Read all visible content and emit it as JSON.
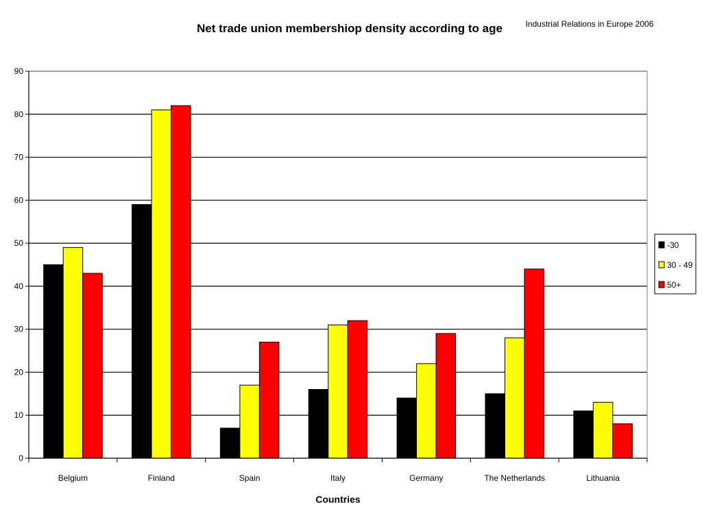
{
  "chart_data": {
    "type": "bar",
    "title": "Net trade union membershiop density according to age",
    "source_note": "Industrial Relations in Europe 2006",
    "xlabel": "Countries",
    "ylabel": "",
    "ylim": [
      0,
      90
    ],
    "yticks": [
      0,
      10,
      20,
      30,
      40,
      50,
      60,
      70,
      80,
      90
    ],
    "grid": true,
    "legend_position": "right",
    "categories": [
      "Belgium",
      "Finland",
      "Spain",
      "Italy",
      "Germany",
      "The Netherlands",
      "Lithuania"
    ],
    "series": [
      {
        "name": "-30",
        "color": "#000000",
        "values": [
          45,
          59,
          7,
          16,
          14,
          15,
          11
        ]
      },
      {
        "name": "30 - 49",
        "color": "#ffff00",
        "values": [
          49,
          81,
          17,
          31,
          22,
          28,
          13
        ]
      },
      {
        "name": "50+",
        "color": "#ff0000",
        "values": [
          43,
          82,
          27,
          32,
          29,
          44,
          8
        ]
      }
    ]
  }
}
